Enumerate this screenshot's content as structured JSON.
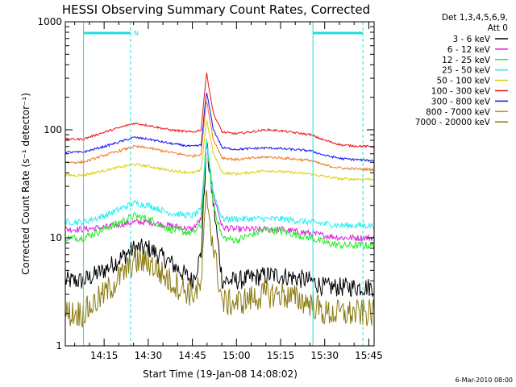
{
  "chart_data": {
    "type": "line",
    "title": "HESSI Observing Summary Count Rates, Corrected",
    "xlabel": "Start Time (19-Jan-08 14:08:02)",
    "ylabel": "Corrected Count Rate (s⁻¹ detector⁻¹)",
    "ylim": [
      1,
      1000
    ],
    "yscale": "log",
    "xlim_minutes": [
      14.03,
      15.78
    ],
    "xtick_labels": [
      "14:15",
      "14:30",
      "14:45",
      "15:00",
      "15:15",
      "15:30",
      "15:45"
    ],
    "xtick_values": [
      "14:15",
      "14:30",
      "14:45",
      "15:00",
      "15:15",
      "15:30",
      "15:45"
    ],
    "ytick_labels": [
      "1",
      "10",
      "100",
      "1000"
    ],
    "ytick_values": [
      1,
      10,
      100,
      1000
    ],
    "legend_header": [
      "Det 1,3,4,5,6,9,",
      "Att 0"
    ],
    "legend_position": "right",
    "night_marker_label": "N",
    "footer_date": "6-Mar-2010 08:00",
    "x_hours": [
      14.13,
      14.25,
      14.42,
      14.5,
      14.62,
      14.75,
      14.8,
      14.83,
      14.87,
      14.92,
      15.0,
      15.17,
      15.25,
      15.42,
      15.5,
      15.6,
      15.75
    ],
    "series": [
      {
        "name": "3 - 6 keV",
        "color": "#000000",
        "noise": 0.09,
        "values": [
          4.0,
          5.0,
          8.0,
          8.0,
          6.0,
          4.0,
          7.0,
          75.0,
          20.0,
          4.0,
          4.0,
          4.5,
          4.5,
          4.0,
          3.5,
          3.5,
          3.5
        ]
      },
      {
        "name": "6 - 12 keV",
        "color": "#e020e0",
        "noise": 0.03,
        "values": [
          12.0,
          12.5,
          14.0,
          14.0,
          13.0,
          12.0,
          15.0,
          75.0,
          25.0,
          12.5,
          12.0,
          12.0,
          12.0,
          11.0,
          10.5,
          10.0,
          10.0
        ]
      },
      {
        "name": "12 - 25 keV",
        "color": "#22ee22",
        "noise": 0.035,
        "values": [
          10.0,
          12.0,
          16.0,
          15.0,
          12.0,
          11.0,
          13.0,
          80.0,
          20.0,
          10.0,
          9.5,
          12.0,
          11.5,
          10.0,
          9.0,
          8.5,
          8.5
        ]
      },
      {
        "name": "25 - 50 keV",
        "color": "#22eeee",
        "noise": 0.03,
        "values": [
          14.0,
          16.0,
          21.0,
          20.0,
          17.0,
          16.0,
          18.0,
          82.0,
          26.0,
          15.0,
          15.0,
          15.0,
          15.0,
          14.0,
          13.5,
          13.0,
          13.0
        ]
      },
      {
        "name": "50 - 100 keV",
        "color": "#ddcc00",
        "noise": 0.012,
        "values": [
          38.0,
          42.0,
          48.0,
          46.0,
          42.0,
          40.0,
          42.0,
          125.0,
          60.0,
          40.0,
          39.0,
          42.0,
          41.0,
          39.0,
          37.0,
          35.0,
          35.0
        ]
      },
      {
        "name": "100 - 300 keV",
        "color": "#ee1111",
        "noise": 0.01,
        "values": [
          82.0,
          95.0,
          115.0,
          110.0,
          100.0,
          95.0,
          100.0,
          340.0,
          140.0,
          95.0,
          92.0,
          100.0,
          98.0,
          90.0,
          80.0,
          72.0,
          70.0
        ]
      },
      {
        "name": "300 - 800 keV",
        "color": "#1010ee",
        "noise": 0.01,
        "values": [
          62.0,
          70.0,
          85.0,
          82.0,
          75.0,
          70.0,
          72.0,
          225.0,
          100.0,
          68.0,
          66.0,
          68.0,
          67.0,
          64.0,
          58.0,
          54.0,
          52.0
        ]
      },
      {
        "name": "800 - 7000 keV",
        "color": "#f07820",
        "noise": 0.012,
        "values": [
          50.0,
          58.0,
          70.0,
          68.0,
          62.0,
          57.0,
          60.0,
          190.0,
          80.0,
          55.0,
          53.0,
          56.0,
          55.0,
          52.0,
          47.0,
          44.0,
          43.0
        ]
      },
      {
        "name": "7000 - 20000 keV",
        "color": "#8a7a10",
        "noise": 0.13,
        "values": [
          2.0,
          3.0,
          6.0,
          6.0,
          4.0,
          3.0,
          3.5,
          26.0,
          8.0,
          2.5,
          2.5,
          3.0,
          3.0,
          2.5,
          2.0,
          2.0,
          2.0
        ]
      }
    ],
    "night_segments": [
      {
        "start": "14:08",
        "end": "14:24"
      },
      {
        "start": "15:26",
        "end": "15:43"
      }
    ],
    "night_color": "#22dddd"
  }
}
